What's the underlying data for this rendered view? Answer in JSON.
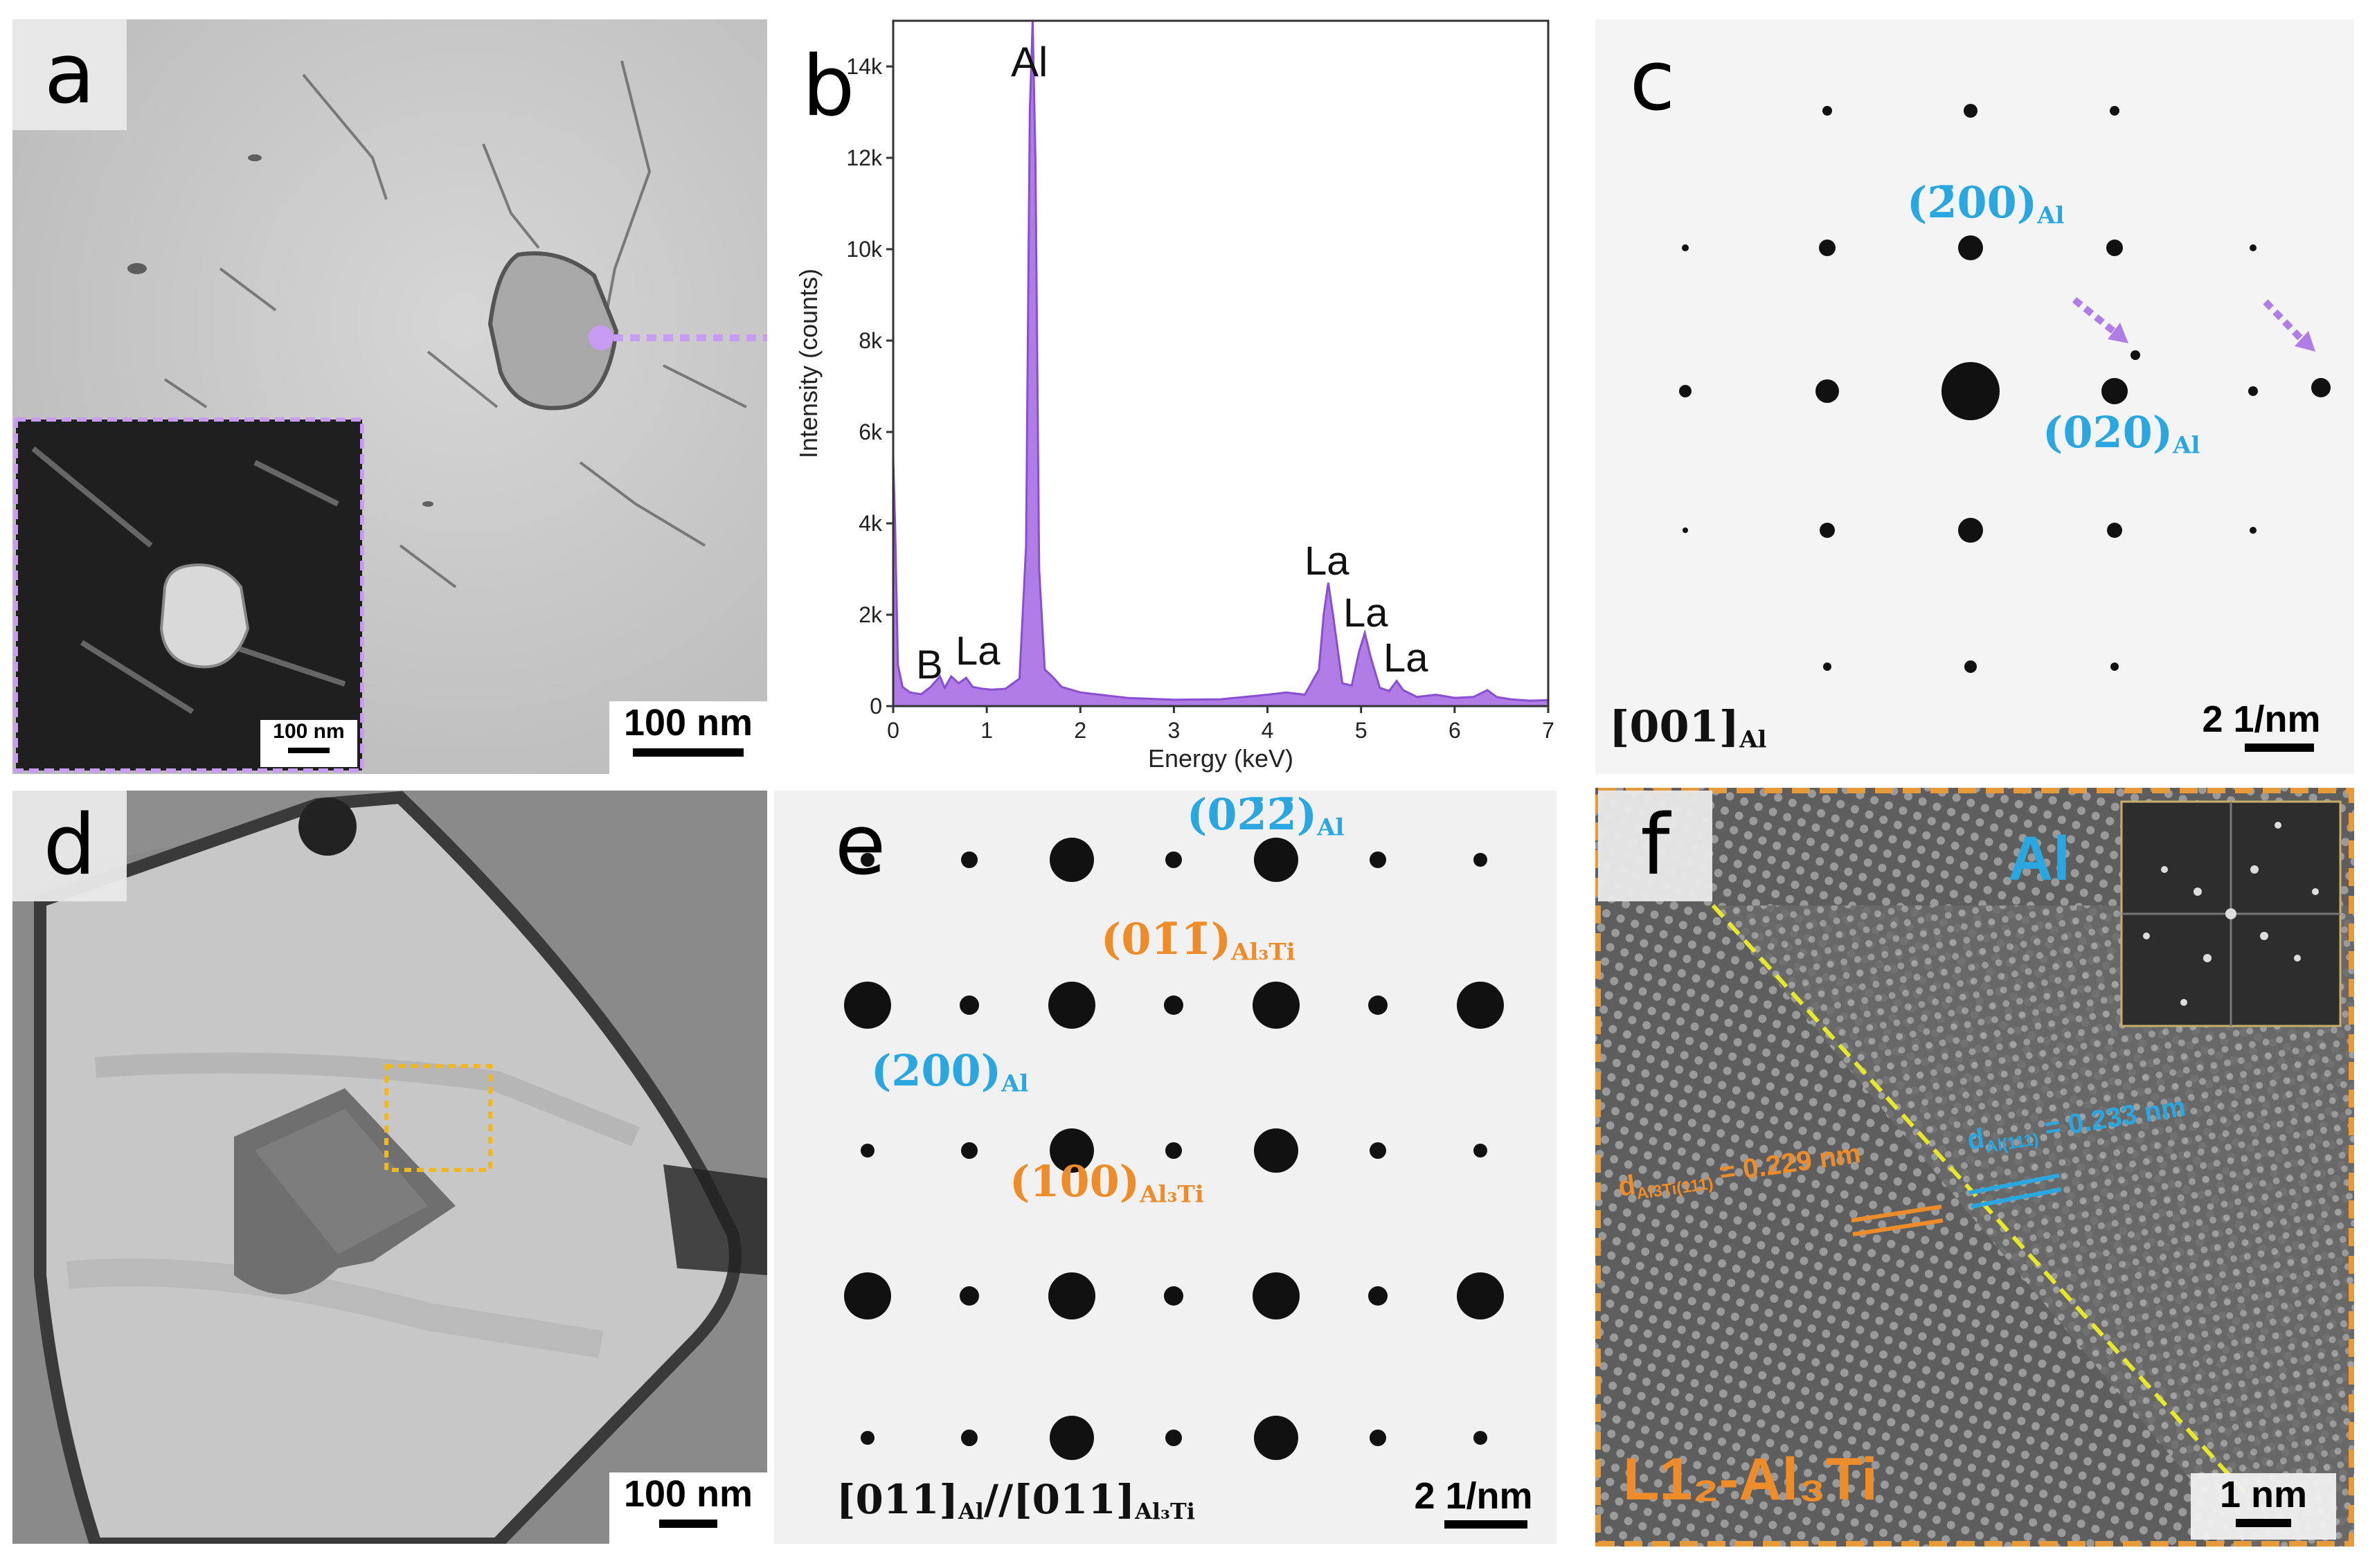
{
  "panels": {
    "a": {
      "label": "a",
      "scale_bar": "100 nm",
      "inset_scale_bar": "100 nm"
    },
    "b": {
      "label": "b",
      "peaks": {
        "b": "B",
        "la_low": "La",
        "al": "Al",
        "la1": "La",
        "la2": "La",
        "la3": "La"
      }
    },
    "c": {
      "label": "c",
      "spot_200": "(2̄00)",
      "spot_200_sub": "Al",
      "spot_020": "(020)",
      "spot_020_sub": "Al",
      "zone_axis": "[001]",
      "zone_axis_sub": "Al",
      "scale_bar": "2 1/nm"
    },
    "d": {
      "label": "d",
      "scale_bar": "100 nm"
    },
    "e": {
      "label": "e",
      "spot_0m2m2": "(02̄2̄)",
      "spot_0m2m2_sub": "Al",
      "spot_0m1m1": "(01̄1̄)",
      "spot_0m1m1_sub": "Al₃Ti",
      "spot_200": "(200)",
      "spot_200_sub": "Al",
      "spot_100": "(100)",
      "spot_100_sub": "Al₃Ti",
      "zone_axis_al": "[011]",
      "zone_axis_al_sub": "Al",
      "zone_axis_sep": "//",
      "zone_axis_al3ti": "[011]",
      "zone_axis_al3ti_sub": "Al₃Ti",
      "scale_bar": "2 1/nm"
    },
    "f": {
      "label": "f",
      "phase_al": "Al",
      "phase_l12": "L1₂-Al₃Ti",
      "d_al3ti_prefix": "d",
      "d_al3ti_sub": "Al3Ti(111)",
      "d_al3ti_value": " = 0.229 nm",
      "d_al_prefix": "d",
      "d_al_sub": "Al(111)",
      "d_al_value": " = 0.233 nm",
      "scale_bar": "1 nm"
    }
  },
  "chart_data": {
    "type": "line",
    "title": "",
    "xlabel": "Energy (keV)",
    "ylabel": "Intensity (counts)",
    "xlim": [
      0,
      7
    ],
    "ylim": [
      0,
      15000
    ],
    "x_ticks": [
      0,
      1,
      2,
      3,
      4,
      5,
      6,
      7
    ],
    "y_tick_labels": [
      "0",
      "2k",
      "4k",
      "6k",
      "8k",
      "10k",
      "12k",
      "14k"
    ],
    "y_tick_values": [
      0,
      2000,
      4000,
      6000,
      8000,
      10000,
      12000,
      14000
    ],
    "series": [
      {
        "fill": "#b07ce6",
        "x": [
          0.0,
          0.02,
          0.05,
          0.1,
          0.18,
          0.3,
          0.4,
          0.5,
          0.55,
          0.62,
          0.7,
          0.78,
          0.85,
          0.95,
          1.05,
          1.2,
          1.35,
          1.42,
          1.46,
          1.49,
          1.52,
          1.56,
          1.62,
          1.7,
          1.8,
          2.0,
          2.5,
          3.0,
          3.5,
          4.0,
          4.2,
          4.4,
          4.55,
          4.6,
          4.65,
          4.7,
          4.8,
          4.9,
          4.98,
          5.04,
          5.1,
          5.2,
          5.3,
          5.38,
          5.45,
          5.6,
          5.8,
          6.0,
          6.2,
          6.35,
          6.45,
          6.6,
          6.8,
          7.0
        ],
        "y": [
          5400,
          4000,
          900,
          420,
          300,
          260,
          420,
          650,
          400,
          650,
          500,
          620,
          420,
          380,
          360,
          380,
          600,
          3500,
          13000,
          15000,
          12000,
          3000,
          800,
          650,
          420,
          300,
          180,
          140,
          150,
          250,
          300,
          250,
          800,
          2000,
          2700,
          2000,
          500,
          450,
          1200,
          1600,
          1100,
          400,
          330,
          550,
          350,
          200,
          250,
          180,
          200,
          350,
          200,
          150,
          120,
          130
        ]
      }
    ]
  }
}
